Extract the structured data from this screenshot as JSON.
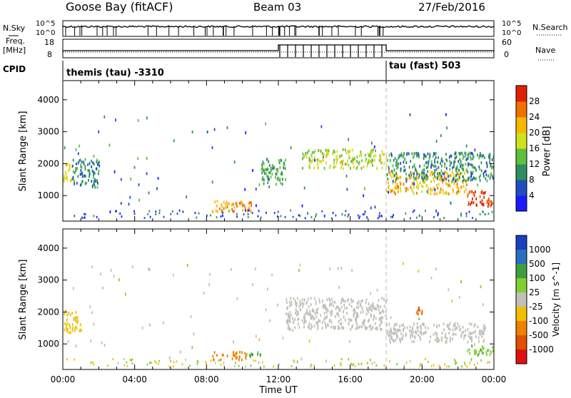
{
  "header": {
    "site": "Goose Bay (fitACF)",
    "beam": "Beam 03",
    "date": "27/Feb/2016"
  },
  "strip": {
    "nsky_label": "N.Sky",
    "nsky_ticks": [
      "10^5",
      "10^0"
    ],
    "nsearch_ticks": [
      "10^5",
      "10^0"
    ],
    "nsearch_label": "N.Search",
    "freq_label_1": "Freq.",
    "freq_label_2": "[MHz]",
    "freq_ticks": [
      "18",
      "8"
    ],
    "nave_ticks": [
      "60",
      "0"
    ],
    "nave_label": "Nave",
    "cpid_label": "CPID",
    "cpid_segments": [
      "themis (tau) -3310",
      "tau (fast) 503"
    ]
  },
  "colors": {
    "power": [
      "#1a1aff",
      "#1f4fbf",
      "#2f8f5f",
      "#5fbf3f",
      "#cfe020",
      "#f8b800",
      "#f07000",
      "#e02000"
    ],
    "velocity": [
      "#1a3fbf",
      "#2a6fbf",
      "#3f9f3f",
      "#7fcf2f",
      "#c0c0b8",
      "#f0c000",
      "#f08000",
      "#e05000",
      "#e01010"
    ]
  },
  "chart_data": [
    {
      "type": "heatmap",
      "panel": "power",
      "xlabel": "",
      "ylabel": "Slant Range [km]",
      "xlim": [
        "00:00",
        "24:00"
      ],
      "ylim": [
        200,
        4600
      ],
      "yticks": [
        1000,
        2000,
        3000,
        4000
      ],
      "colorbar_label": "Power [dB]",
      "colorbar_ticks": [
        "4",
        "8",
        "12",
        "16",
        "20",
        "24",
        "28"
      ],
      "cpid_change_time": "18:00",
      "features": [
        {
          "t": [
            0.0,
            0.5
          ],
          "range": [
            1400,
            2000
          ],
          "power": 20
        },
        {
          "t": [
            0.5,
            2.0
          ],
          "range": [
            1200,
            2100
          ],
          "power": 9
        },
        {
          "t": [
            8.3,
            10.6
          ],
          "range": [
            450,
            800
          ],
          "power": 24
        },
        {
          "t": [
            11.0,
            12.4
          ],
          "range": [
            1300,
            2100
          ],
          "power": 12
        },
        {
          "t": [
            13.3,
            18.0
          ],
          "range": [
            1800,
            2400
          ],
          "power": 17
        },
        {
          "t": [
            18.0,
            22.5
          ],
          "range": [
            1000,
            1700
          ],
          "power": 22
        },
        {
          "t": [
            18.0,
            24.0
          ],
          "range": [
            1400,
            2300
          ],
          "power": 10
        },
        {
          "t": [
            22.5,
            24.0
          ],
          "range": [
            600,
            1100
          ],
          "power": 30
        }
      ]
    },
    {
      "type": "heatmap",
      "panel": "velocity",
      "xlabel": "Time UT",
      "ylabel": "Slant Range [km]",
      "xticks": [
        "00:00",
        "04:00",
        "08:00",
        "12:00",
        "16:00",
        "20:00",
        "00:00"
      ],
      "ylim": [
        200,
        4600
      ],
      "yticks": [
        1000,
        2000,
        3000,
        4000
      ],
      "colorbar_label": "Velocity [m s^-1]",
      "colorbar_ticks": [
        "1000",
        "500",
        "100",
        "25",
        "-25",
        "-100",
        "-500",
        "-1000"
      ],
      "cpid_change_time": "18:00",
      "features": [
        {
          "t": [
            0.0,
            1.0
          ],
          "range": [
            1300,
            2000
          ],
          "velocity": -60
        },
        {
          "t": [
            8.3,
            10.2
          ],
          "range": [
            450,
            700
          ],
          "velocity": -150
        },
        {
          "t": [
            10.2,
            11.0
          ],
          "range": [
            500,
            700
          ],
          "velocity": 100
        },
        {
          "t": [
            12.4,
            18.0
          ],
          "range": [
            1400,
            2400
          ],
          "velocity": 0
        },
        {
          "t": [
            18.0,
            23.5
          ],
          "range": [
            1000,
            1600
          ],
          "velocity": 0
        },
        {
          "t": [
            19.5,
            20.0
          ],
          "range": [
            1850,
            2100
          ],
          "velocity": -500
        },
        {
          "t": [
            22.5,
            24.0
          ],
          "range": [
            600,
            900
          ],
          "velocity": 80
        }
      ]
    }
  ]
}
